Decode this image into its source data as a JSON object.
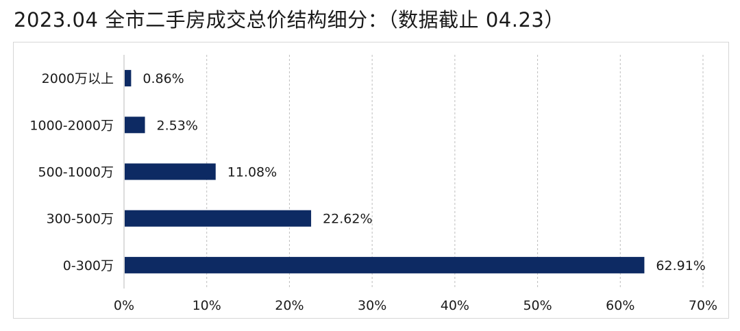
{
  "title": "2023.04 全市二手房成交总价结构细分：（数据截止 04.23）",
  "chart_data": {
    "type": "bar",
    "orientation": "horizontal",
    "categories": [
      "2000万以上",
      "1000-2000万",
      "500-1000万",
      "300-500万",
      "0-300万"
    ],
    "values": [
      0.86,
      2.53,
      11.08,
      22.62,
      62.91
    ],
    "value_labels": [
      "0.86%",
      "2.53%",
      "11.08%",
      "22.62%",
      "62.91%"
    ],
    "xlim": [
      0,
      70
    ],
    "x_ticks": [
      0,
      10,
      20,
      30,
      40,
      50,
      60,
      70
    ],
    "x_tick_labels": [
      "0%",
      "10%",
      "20%",
      "30%",
      "40%",
      "50%",
      "60%",
      "70%"
    ],
    "grid": "vertical dashed",
    "bar_color": "#0d2a63",
    "legend": false
  }
}
